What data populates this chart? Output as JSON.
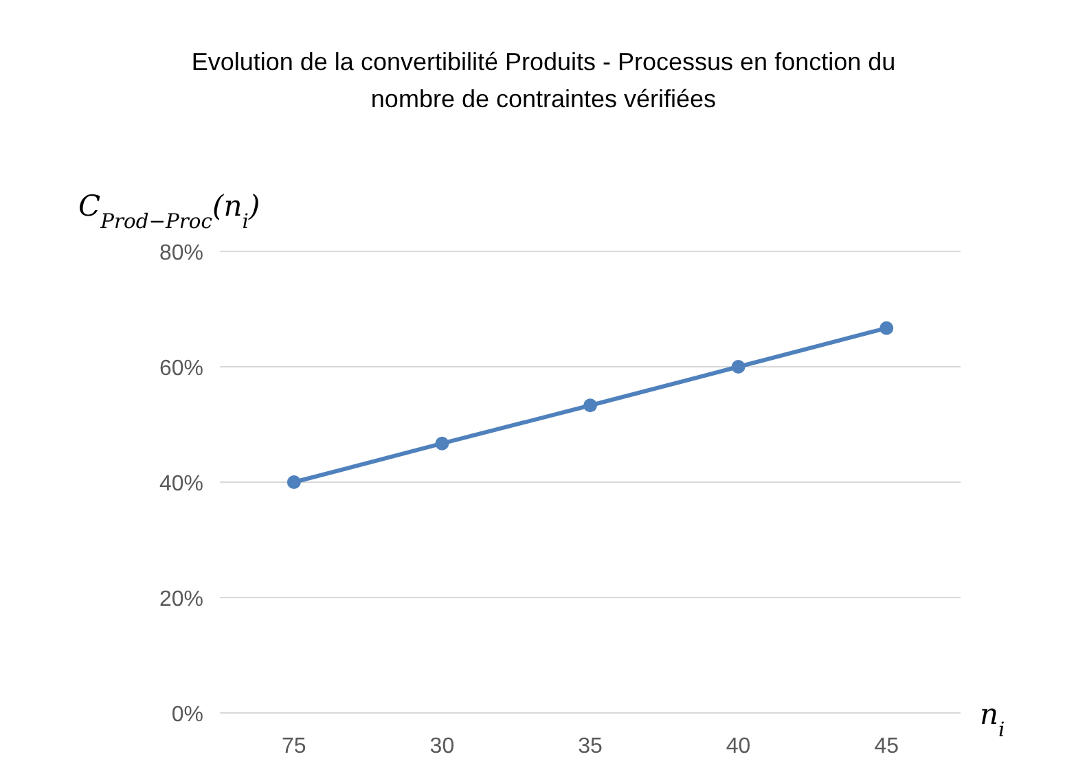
{
  "chart_data": {
    "type": "line",
    "title": "Evolution de la convertibilité Produits - Processus en fonction du nombre de contraintes vérifiées",
    "xlabel": "n$_{i}$",
    "ylabel": "C$_{Prod−Proc}$(n$_{i}$)",
    "categories": [
      "75",
      "30",
      "35",
      "40",
      "45"
    ],
    "series": [
      {
        "color": "#4f81bd",
        "values": [
          40,
          46.7,
          53.3,
          60,
          66.7
        ]
      }
    ],
    "ylim": [
      0,
      80
    ],
    "yticks": [
      {
        "value": 0,
        "label": "0%"
      },
      {
        "value": 20,
        "label": "20%"
      },
      {
        "value": 40,
        "label": "40%"
      },
      {
        "value": 60,
        "label": "60%"
      },
      {
        "value": 80,
        "label": "80%"
      }
    ],
    "grid": "y",
    "marker": "circle",
    "line_style": "solid"
  }
}
